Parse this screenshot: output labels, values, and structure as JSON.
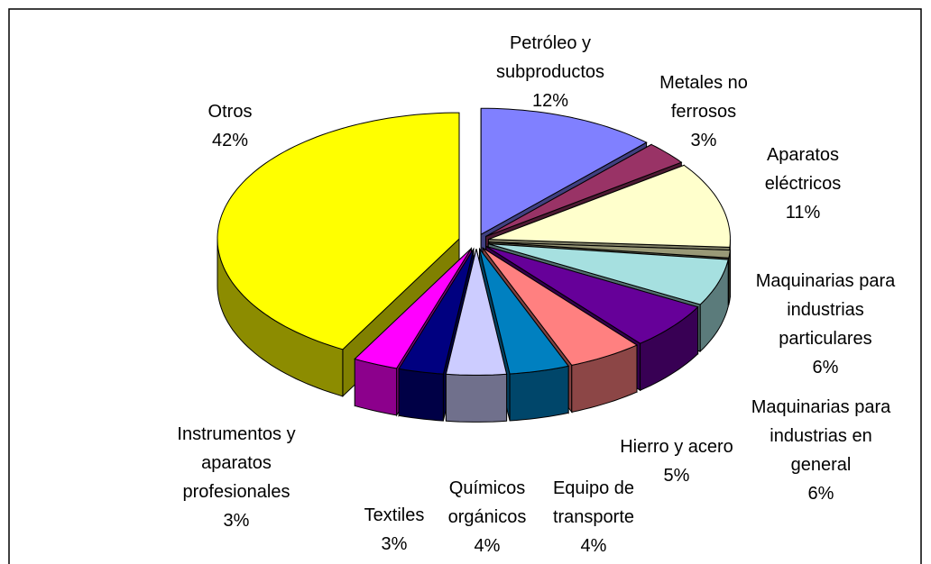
{
  "chart_data": {
    "type": "pie3d",
    "categories": [
      "Petróleo y subproductos",
      "Metales no ferrosos",
      "Aparatos eléctricos",
      null,
      "Maquinarias para industrias particulares",
      "Maquinarias para industrias en general",
      "Hierro y acero",
      "Equipo de transporte",
      "Químicos orgánicos",
      "Textiles",
      "Instrumentos y aparatos profesionales",
      "Otros"
    ],
    "values": [
      12,
      3,
      11,
      1,
      6,
      6,
      5,
      4,
      4,
      3,
      3,
      42
    ],
    "value_labels": [
      "12%",
      "3%",
      "11%",
      null,
      "6%",
      "6%",
      "5%",
      "4%",
      "4%",
      "3%",
      "3%",
      "42%"
    ],
    "colors": [
      "#8080ff",
      "#993366",
      "#ffffcc",
      "#999977",
      "#a6e0e0",
      "#660099",
      "#ff8080",
      "#0080c0",
      "#ccccff",
      "#000080",
      "#ff00ff",
      "#ffff00"
    ]
  }
}
